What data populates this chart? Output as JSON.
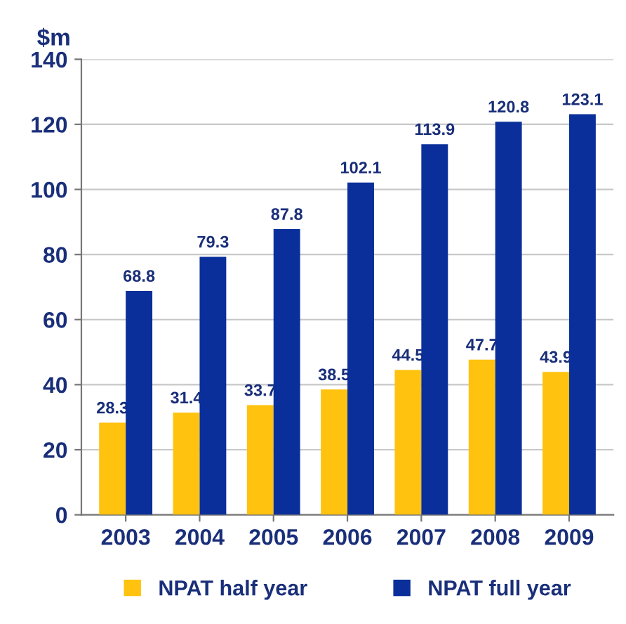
{
  "chart_data": {
    "type": "bar",
    "ylabel": "$m",
    "categories": [
      "2003",
      "2004",
      "2005",
      "2006",
      "2007",
      "2008",
      "2009"
    ],
    "series": [
      {
        "name": "NPAT half year",
        "color": "#ffc20e",
        "values": [
          28.3,
          31.4,
          33.7,
          38.5,
          44.5,
          47.7,
          43.9
        ]
      },
      {
        "name": "NPAT full year",
        "color": "#0a2f9a",
        "values": [
          68.8,
          79.3,
          87.8,
          102.1,
          113.9,
          120.8,
          123.1
        ]
      }
    ],
    "ylim": [
      0,
      140
    ],
    "yticks": [
      0,
      20,
      40,
      60,
      80,
      100,
      120,
      140
    ],
    "grid": "y",
    "legend": "bottom",
    "data_labels": true
  }
}
